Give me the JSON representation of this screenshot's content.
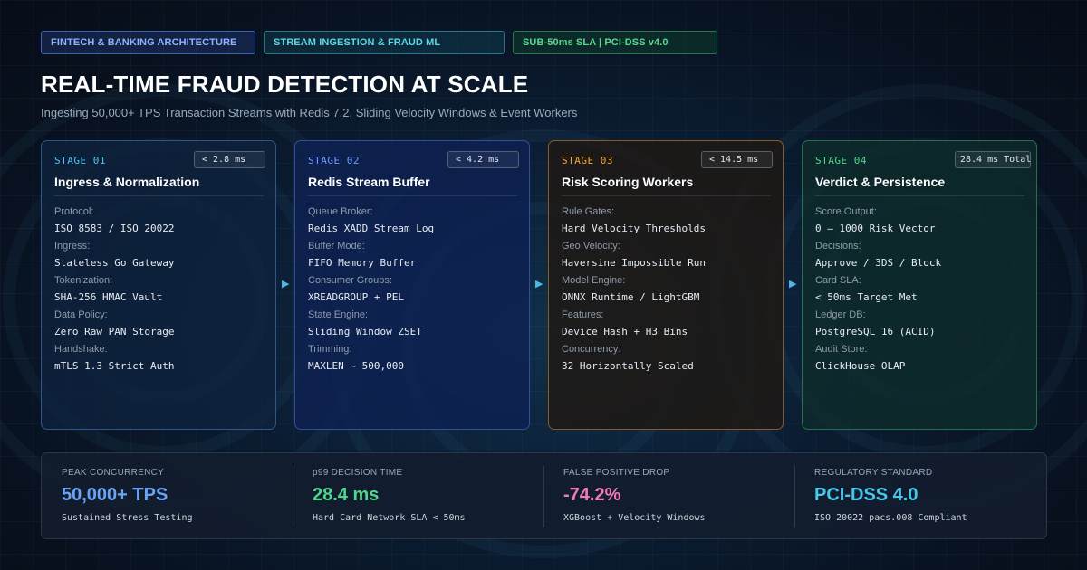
{
  "badges": [
    {
      "label": "FINTECH & BANKING ARCHITECTURE"
    },
    {
      "label": "STREAM INGESTION & FRAUD ML"
    },
    {
      "label": "SUB-50ms SLA | PCI-DSS v4.0"
    }
  ],
  "title": "REAL-TIME FRAUD DETECTION AT SCALE",
  "subtitle": "Ingesting 50,000+ TPS Transaction Streams with Redis 7.2, Sliding Velocity Windows & Event Workers",
  "colors": {
    "stage_1_accent": "#4fc3ef",
    "stage_2_accent": "#6d9cff",
    "stage_3_accent": "#f2a33a",
    "stage_4_accent": "#4fd68c",
    "arrow": "#4fb6e8"
  },
  "connector_icon": "triangle-right-arrow",
  "arrow_glyph": "▶",
  "stages": [
    {
      "stage_label": "STAGE 01",
      "latency": "< 2.8 ms",
      "name": "Ingress & Normalization",
      "fields": [
        {
          "label": "Protocol:",
          "value": "ISO 8583 / ISO 20022"
        },
        {
          "label": "Ingress:",
          "value": "Stateless Go Gateway"
        },
        {
          "label": "Tokenization:",
          "value": "SHA-256 HMAC Vault"
        },
        {
          "label": "Data Policy:",
          "value": "Zero Raw PAN Storage"
        },
        {
          "label": "Handshake:",
          "value": "mTLS 1.3 Strict Auth"
        }
      ]
    },
    {
      "stage_label": "STAGE 02",
      "latency": "< 4.2 ms",
      "name": "Redis Stream Buffer",
      "fields": [
        {
          "label": "Queue Broker:",
          "value": "Redis XADD Stream Log"
        },
        {
          "label": "Buffer Mode:",
          "value": "FIFO Memory Buffer"
        },
        {
          "label": "Consumer Groups:",
          "value": "XREADGROUP + PEL"
        },
        {
          "label": "State Engine:",
          "value": "Sliding Window ZSET"
        },
        {
          "label": "Trimming:",
          "value": "MAXLEN ~ 500,000"
        }
      ]
    },
    {
      "stage_label": "STAGE 03",
      "latency": "< 14.5 ms",
      "name": "Risk Scoring Workers",
      "fields": [
        {
          "label": "Rule Gates:",
          "value": "Hard Velocity Thresholds"
        },
        {
          "label": "Geo Velocity:",
          "value": "Haversine Impossible Run"
        },
        {
          "label": "Model Engine:",
          "value": "ONNX Runtime / LightGBM"
        },
        {
          "label": "Features:",
          "value": "Device Hash + H3 Bins"
        },
        {
          "label": "Concurrency:",
          "value": "32 Horizontally Scaled"
        }
      ]
    },
    {
      "stage_label": "STAGE 04",
      "latency": "28.4 ms Total",
      "name": "Verdict & Persistence",
      "fields": [
        {
          "label": "Score Output:",
          "value": "0 – 1000 Risk Vector"
        },
        {
          "label": "Decisions:",
          "value": "Approve / 3DS / Block"
        },
        {
          "label": "Card SLA:",
          "value": "< 50ms Target Met"
        },
        {
          "label": "Ledger DB:",
          "value": "PostgreSQL 16 (ACID)"
        },
        {
          "label": "Audit Store:",
          "value": "ClickHouse OLAP"
        }
      ]
    }
  ],
  "metrics": [
    {
      "label": "PEAK CONCURRENCY",
      "value": "50,000+ TPS",
      "note": "Sustained Stress Testing",
      "color": "#6aa5f5"
    },
    {
      "label": "p99 DECISION TIME",
      "value": "28.4 ms",
      "note": "Hard Card Network SLA < 50ms",
      "color": "#52d48b"
    },
    {
      "label": "FALSE POSITIVE DROP",
      "value": "-74.2%",
      "note": "XGBoost + Velocity Windows",
      "color": "#f07cb5"
    },
    {
      "label": "REGULATORY STANDARD",
      "value": "PCI-DSS 4.0",
      "note": "ISO 20022 pacs.008 Compliant",
      "color": "#47c8ea"
    }
  ]
}
